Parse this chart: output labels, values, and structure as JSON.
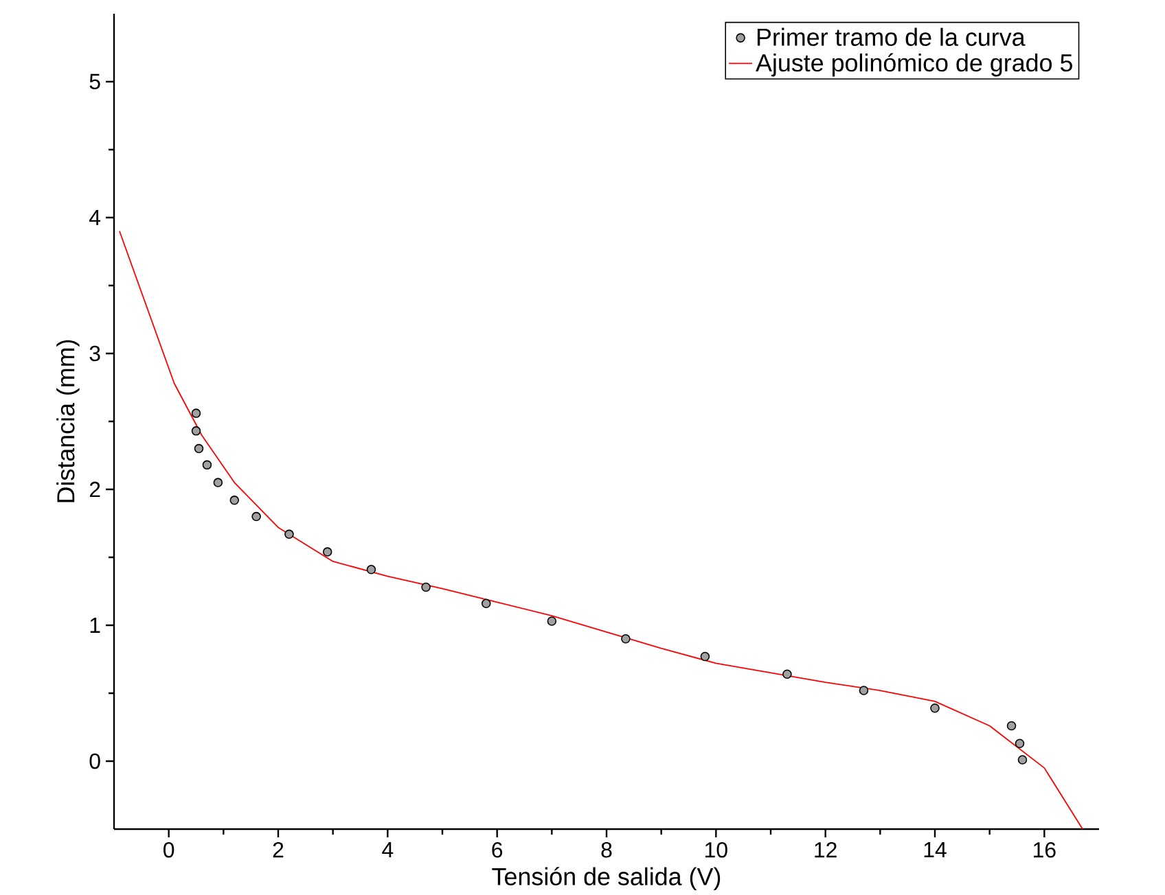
{
  "chart_data": {
    "type": "scatter",
    "xlabel": "Tensión de salida (V)",
    "ylabel": "Distancia (mm)",
    "xlim": [
      -1,
      17
    ],
    "ylim": [
      -0.5,
      5.5
    ],
    "xticks": [
      0,
      2,
      4,
      6,
      8,
      10,
      12,
      14,
      16
    ],
    "yticks": [
      0,
      1,
      2,
      3,
      4,
      5
    ],
    "legend": "top right",
    "grid": false,
    "series": [
      {
        "name": "Primer tramo de la curva",
        "marker": "circle",
        "color": "#a0a0a0",
        "x": [
          0.5,
          0.5,
          0.55,
          0.7,
          0.9,
          1.2,
          1.6,
          2.2,
          2.9,
          3.7,
          4.7,
          5.8,
          7.0,
          8.35,
          9.8,
          11.3,
          12.7,
          14.0,
          15.4,
          15.55,
          15.6
        ],
        "values": [
          2.56,
          2.43,
          2.3,
          2.18,
          2.05,
          1.92,
          1.8,
          1.67,
          1.54,
          1.41,
          1.28,
          1.16,
          1.03,
          0.9,
          0.77,
          0.64,
          0.52,
          0.39,
          0.26,
          0.13,
          0.01
        ]
      },
      {
        "name": "Ajuste polinómico de grado 5",
        "type": "line",
        "marker": "none",
        "line_style": "solid",
        "color": "#ff0000",
        "x": [
          -0.9,
          0.1,
          0.6,
          1.2,
          2.0,
          3.0,
          4,
          5,
          6,
          7,
          8,
          9,
          10,
          11,
          12,
          13,
          14,
          15,
          16,
          16.7
        ],
        "values": [
          3.9,
          2.78,
          2.4,
          2.05,
          1.72,
          1.47,
          1.36,
          1.27,
          1.17,
          1.07,
          0.95,
          0.83,
          0.72,
          0.65,
          0.58,
          0.52,
          0.44,
          0.26,
          -0.05,
          -0.5
        ]
      }
    ]
  }
}
